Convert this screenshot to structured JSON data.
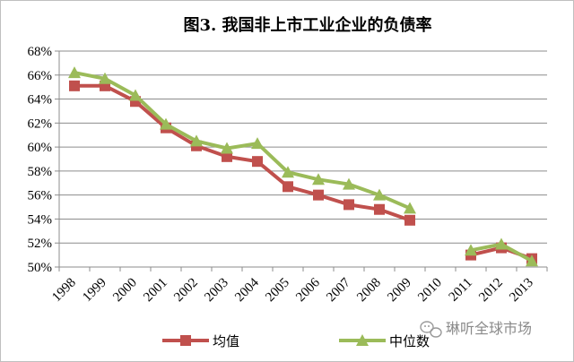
{
  "chart_data": {
    "type": "line",
    "title": "图3. 我国非上市工业企业的负债率",
    "categories": [
      "1998",
      "1999",
      "2000",
      "2001",
      "2002",
      "2003",
      "2004",
      "2005",
      "2006",
      "2007",
      "2008",
      "2009",
      "2010",
      "2011",
      "2012",
      "2013"
    ],
    "y_tick_labels": [
      "50%",
      "52%",
      "54%",
      "56%",
      "58%",
      "60%",
      "62%",
      "64%",
      "66%",
      "68%"
    ],
    "ylim": [
      50,
      68
    ],
    "grid": true,
    "legend_position": "bottom",
    "series": [
      {
        "name": "均值",
        "color": "#c0504d",
        "marker": "square",
        "values": [
          65.1,
          65.1,
          63.8,
          61.6,
          60.1,
          59.2,
          58.8,
          56.7,
          56.0,
          55.2,
          54.8,
          53.9,
          null,
          51.0,
          51.6,
          50.7
        ]
      },
      {
        "name": "中位数",
        "color": "#9bbb59",
        "marker": "triangle",
        "values": [
          66.2,
          65.7,
          64.3,
          61.9,
          60.5,
          59.9,
          60.3,
          57.9,
          57.3,
          56.9,
          56.0,
          54.9,
          null,
          51.4,
          51.9,
          50.5
        ]
      }
    ]
  },
  "watermark": {
    "text": "琳听全球市场",
    "icon": "wechat-icon"
  }
}
